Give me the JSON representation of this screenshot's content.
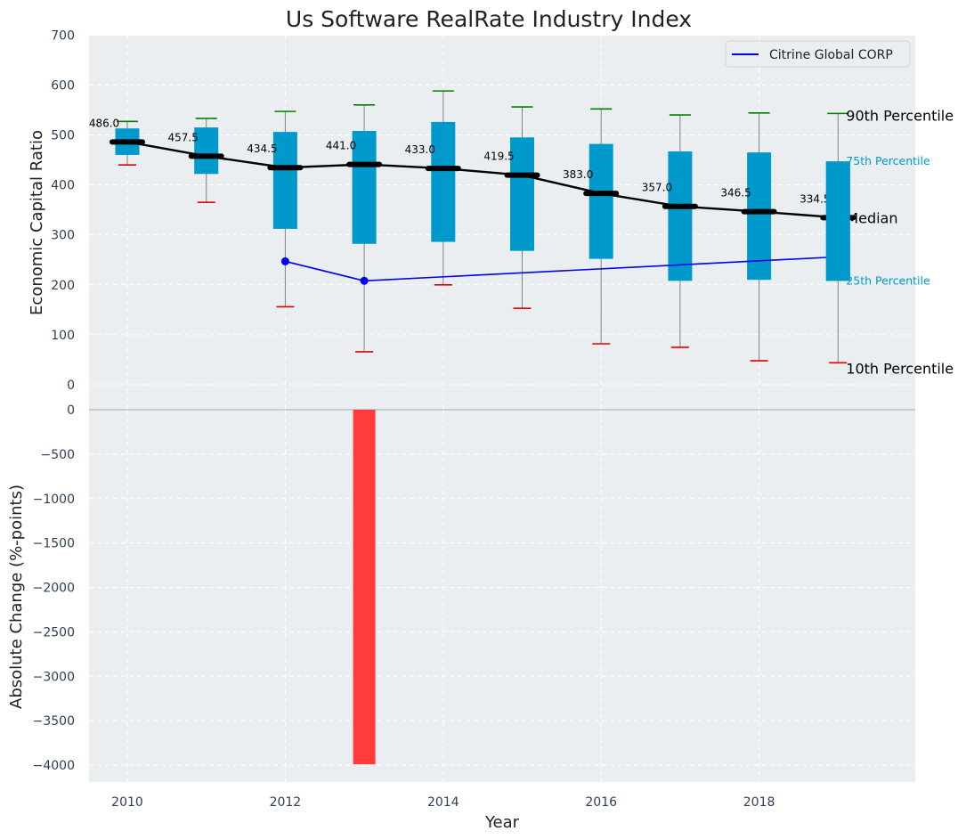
{
  "chart_data": [
    {
      "type": "box",
      "title": "Us Software RealRate Industry Index",
      "xlabel": "",
      "ylabel": "Economic Capital Ratio",
      "ylim": [
        0,
        700
      ],
      "yticks": [
        0,
        100,
        200,
        300,
        400,
        500,
        600,
        700
      ],
      "x": [
        2010,
        2011,
        2012,
        2013,
        2014,
        2015,
        2016,
        2017,
        2018,
        2019
      ],
      "p10": [
        440,
        365,
        156,
        66,
        200,
        153,
        82,
        75,
        48,
        44
      ],
      "p25": [
        460,
        422,
        312,
        282,
        286,
        268,
        252,
        208,
        210,
        208
      ],
      "median": [
        486.0,
        457.5,
        434.5,
        441.0,
        433.0,
        419.5,
        383.0,
        357.0,
        346.5,
        334.5
      ],
      "median_labels": [
        "486.0",
        "457.5",
        "434.5",
        "441.0",
        "433.0",
        "419.5",
        "383.0",
        "357.0",
        "346.5",
        "334.5"
      ],
      "p75": [
        513,
        515,
        506,
        508,
        526,
        495,
        482,
        467,
        465,
        447
      ],
      "p90": [
        527,
        533,
        547,
        560,
        588,
        556,
        552,
        540,
        544,
        543
      ],
      "company": {
        "name": "Citrine Global CORP",
        "x": [
          2012,
          2013,
          2019
        ],
        "values": [
          247,
          208,
          256
        ]
      },
      "legend": [
        "Citrine Global CORP"
      ],
      "legend_position": "top-right",
      "percentile_labels": [
        "90th Percentile",
        "75th Percentile",
        "Median",
        "25th Percentile",
        "10th Percentile"
      ],
      "colors": {
        "box": "#0099cc",
        "median": "#000000",
        "whisker_high": "#008000",
        "whisker_low": "#e00000",
        "company": "#0000ee",
        "whisker": "#808080"
      }
    },
    {
      "type": "bar",
      "xlabel": "Year",
      "ylabel": "Absolute Change (%-points)",
      "ylim": [
        -4200,
        0
      ],
      "yticks": [
        0,
        -500,
        -1000,
        -1500,
        -2000,
        -2500,
        -3000,
        -3500,
        -4000
      ],
      "ytick_labels": [
        "0",
        "−500",
        "−1000",
        "−1500",
        "−2000",
        "−2500",
        "−3000",
        "−3500",
        "−4000"
      ],
      "xlim": [
        2009.5,
        2019.95
      ],
      "xticks": [
        2010,
        2012,
        2014,
        2016,
        2018
      ],
      "bars": [
        {
          "x": 2013,
          "value": -3991
        }
      ],
      "colors": {
        "bar": "#ff3b3b"
      }
    }
  ]
}
